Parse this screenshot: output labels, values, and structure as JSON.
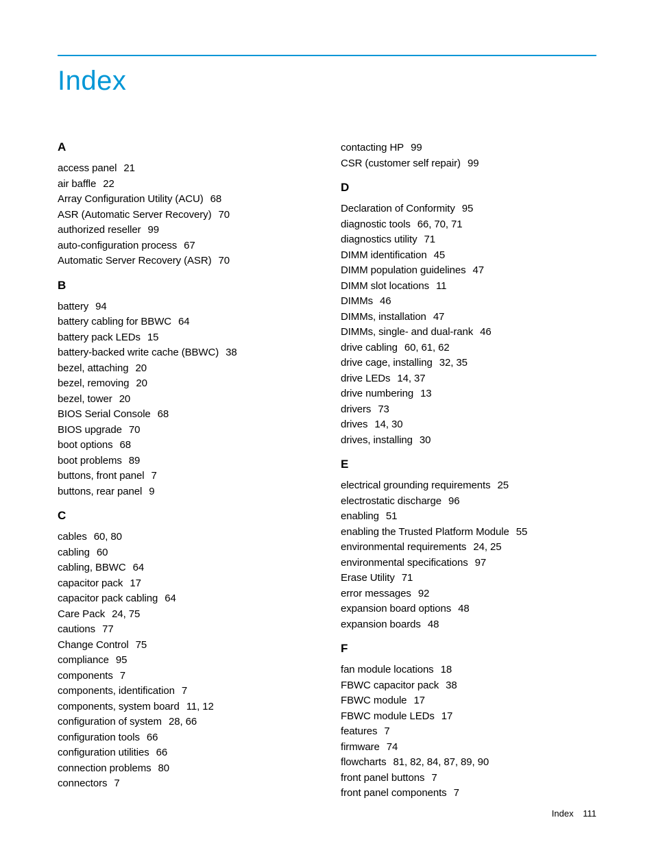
{
  "title": "Index",
  "rule_color": "#0096d6",
  "title_color": "#0096d6",
  "text_color": "#000000",
  "background_color": "#ffffff",
  "body_fontsize": 15,
  "title_fontsize": 40,
  "head_fontsize": 17,
  "columns": [
    {
      "sections": [
        {
          "letter": "A",
          "entries": [
            {
              "term": "access panel",
              "pages": "21"
            },
            {
              "term": "air baffle",
              "pages": "22"
            },
            {
              "term": "Array Configuration Utility (ACU)",
              "pages": "68"
            },
            {
              "term": "ASR (Automatic Server Recovery)",
              "pages": "70"
            },
            {
              "term": "authorized reseller",
              "pages": "99"
            },
            {
              "term": "auto-configuration process",
              "pages": "67"
            },
            {
              "term": "Automatic Server Recovery (ASR)",
              "pages": "70"
            }
          ]
        },
        {
          "letter": "B",
          "entries": [
            {
              "term": "battery",
              "pages": "94"
            },
            {
              "term": "battery cabling for BBWC",
              "pages": "64"
            },
            {
              "term": "battery pack LEDs",
              "pages": "15"
            },
            {
              "term": "battery-backed write cache (BBWC)",
              "pages": "38"
            },
            {
              "term": "bezel, attaching",
              "pages": "20"
            },
            {
              "term": "bezel, removing",
              "pages": "20"
            },
            {
              "term": "bezel, tower",
              "pages": "20"
            },
            {
              "term": "BIOS Serial Console",
              "pages": "68"
            },
            {
              "term": "BIOS upgrade",
              "pages": "70"
            },
            {
              "term": "boot options",
              "pages": "68"
            },
            {
              "term": "boot problems",
              "pages": "89"
            },
            {
              "term": "buttons, front panel",
              "pages": "7"
            },
            {
              "term": "buttons, rear panel",
              "pages": "9"
            }
          ]
        },
        {
          "letter": "C",
          "entries": [
            {
              "term": "cables",
              "pages": "60, 80"
            },
            {
              "term": "cabling",
              "pages": "60"
            },
            {
              "term": "cabling, BBWC",
              "pages": "64"
            },
            {
              "term": "capacitor pack",
              "pages": "17"
            },
            {
              "term": "capacitor pack cabling",
              "pages": "64"
            },
            {
              "term": "Care Pack",
              "pages": "24, 75"
            },
            {
              "term": "cautions",
              "pages": "77"
            },
            {
              "term": "Change Control",
              "pages": "75"
            },
            {
              "term": "compliance",
              "pages": "95"
            },
            {
              "term": "components",
              "pages": "7"
            },
            {
              "term": "components, identification",
              "pages": "7"
            },
            {
              "term": "components, system board",
              "pages": "11, 12"
            },
            {
              "term": "configuration of system",
              "pages": "28, 66"
            },
            {
              "term": "configuration tools",
              "pages": "66"
            },
            {
              "term": "configuration utilities",
              "pages": "66"
            },
            {
              "term": "connection problems",
              "pages": "80"
            },
            {
              "term": "connectors",
              "pages": "7"
            }
          ]
        }
      ]
    },
    {
      "sections": [
        {
          "letter": "",
          "entries": [
            {
              "term": "contacting HP",
              "pages": "99"
            },
            {
              "term": "CSR (customer self repair)",
              "pages": "99"
            }
          ]
        },
        {
          "letter": "D",
          "entries": [
            {
              "term": "Declaration of Conformity",
              "pages": "95"
            },
            {
              "term": "diagnostic tools",
              "pages": "66, 70, 71"
            },
            {
              "term": "diagnostics utility",
              "pages": "71"
            },
            {
              "term": "DIMM identification",
              "pages": "45"
            },
            {
              "term": "DIMM population guidelines",
              "pages": "47"
            },
            {
              "term": "DIMM slot locations",
              "pages": "11"
            },
            {
              "term": "DIMMs",
              "pages": "46"
            },
            {
              "term": "DIMMs, installation",
              "pages": "47"
            },
            {
              "term": "DIMMs, single- and dual-rank",
              "pages": "46"
            },
            {
              "term": "drive cabling",
              "pages": "60, 61, 62"
            },
            {
              "term": "drive cage, installing",
              "pages": "32, 35"
            },
            {
              "term": "drive LEDs",
              "pages": "14, 37"
            },
            {
              "term": "drive numbering",
              "pages": "13"
            },
            {
              "term": "drivers",
              "pages": "73"
            },
            {
              "term": "drives",
              "pages": "14, 30"
            },
            {
              "term": "drives, installing",
              "pages": "30"
            }
          ]
        },
        {
          "letter": "E",
          "entries": [
            {
              "term": "electrical grounding requirements",
              "pages": "25"
            },
            {
              "term": "electrostatic discharge",
              "pages": "96"
            },
            {
              "term": "enabling",
              "pages": "51"
            },
            {
              "term": "enabling the Trusted Platform Module",
              "pages": "55"
            },
            {
              "term": "environmental requirements",
              "pages": "24, 25"
            },
            {
              "term": "environmental specifications",
              "pages": "97"
            },
            {
              "term": "Erase Utility",
              "pages": "71"
            },
            {
              "term": "error messages",
              "pages": "92"
            },
            {
              "term": "expansion board options",
              "pages": "48"
            },
            {
              "term": "expansion boards",
              "pages": "48"
            }
          ]
        },
        {
          "letter": "F",
          "entries": [
            {
              "term": "fan module locations",
              "pages": "18"
            },
            {
              "term": "FBWC capacitor pack",
              "pages": "38"
            },
            {
              "term": "FBWC module",
              "pages": "17"
            },
            {
              "term": "FBWC module LEDs",
              "pages": "17"
            },
            {
              "term": "features",
              "pages": "7"
            },
            {
              "term": "firmware",
              "pages": "74"
            },
            {
              "term": "flowcharts",
              "pages": "81, 82, 84, 87, 89, 90"
            },
            {
              "term": "front panel buttons",
              "pages": "7"
            },
            {
              "term": "front panel components",
              "pages": "7"
            }
          ]
        }
      ]
    }
  ],
  "footer": {
    "label": "Index",
    "page": "111"
  }
}
